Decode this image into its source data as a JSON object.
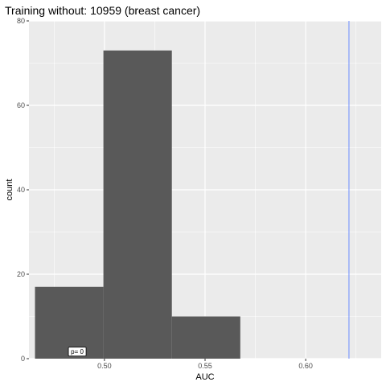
{
  "chart_data": {
    "type": "bar",
    "title": "Training without: 10959 (breast cancer)",
    "xlabel": "AUC",
    "ylabel": "count",
    "xlim": [
      0.4625,
      0.6375
    ],
    "ylim": [
      0,
      80
    ],
    "x_ticks": [
      0.5,
      0.55,
      0.6
    ],
    "x_tick_labels": [
      "0.50",
      "0.55",
      "0.60"
    ],
    "y_ticks": [
      0,
      20,
      40,
      60,
      80
    ],
    "y_tick_labels": [
      "0",
      "20",
      "40",
      "60",
      "80"
    ],
    "bins": [
      {
        "start": 0.4655,
        "end": 0.4995,
        "count": 17
      },
      {
        "start": 0.4995,
        "end": 0.5335,
        "count": 73
      },
      {
        "start": 0.5335,
        "end": 0.5675,
        "count": 10
      }
    ],
    "reference_line": {
      "x": 0.6215,
      "color": "#6b8cff"
    },
    "annotation": {
      "text": "p= 0",
      "x": 0.4865,
      "y": 1
    },
    "grid": true,
    "colors": {
      "panel": "#ebebeb",
      "grid_major": "#ffffff",
      "bar": "#595959"
    }
  }
}
